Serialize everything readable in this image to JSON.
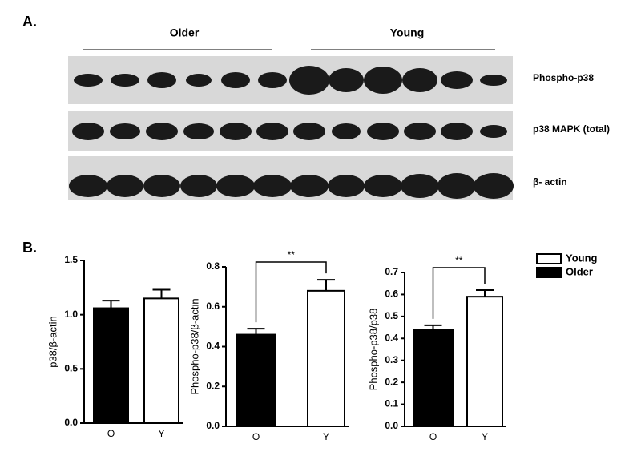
{
  "panel_labels": [
    "A.",
    "B."
  ],
  "blot": {
    "groups": [
      "Older",
      "Young"
    ],
    "rows": [
      "Phospho-p38",
      "p38 MAPK (total)",
      "β- actin"
    ]
  },
  "legend": [
    {
      "name": "Young",
      "color": "#ffffff"
    },
    {
      "name": "Older",
      "color": "#000000"
    }
  ],
  "chart_data": [
    {
      "type": "bar",
      "y_label": "p38/β-actin",
      "categories": [
        "O",
        "Y"
      ],
      "values": [
        1.06,
        1.15
      ],
      "errors": [
        0.07,
        0.08
      ],
      "colors": [
        "#000000",
        "#ffffff"
      ],
      "ylim": [
        0,
        1.5
      ],
      "yticks": [
        {
          "value": 0,
          "label": "0.0"
        },
        0.5,
        {
          "value": 1,
          "label": "1.0"
        },
        1.5
      ]
    },
    {
      "type": "bar",
      "y_label": "Phospho-p38/β-actin",
      "categories": [
        "O",
        "Y"
      ],
      "values": [
        0.46,
        0.68
      ],
      "errors": [
        0.03,
        0.055
      ],
      "colors": [
        "#000000",
        "#ffffff"
      ],
      "ylim": [
        0,
        0.8
      ],
      "yticks": [
        {
          "value": 0,
          "label": "0.0"
        },
        0.2,
        0.4,
        0.6,
        0.8
      ],
      "annotation": "**"
    },
    {
      "type": "bar",
      "y_label": "Phospho-p38/p38",
      "categories": [
        "O",
        "Y"
      ],
      "values": [
        0.44,
        0.59
      ],
      "errors": [
        0.02,
        0.03
      ],
      "colors": [
        "#000000",
        "#ffffff"
      ],
      "ylim": [
        0,
        0.7
      ],
      "yticks": [
        {
          "value": 0,
          "label": "0.0"
        },
        0.1,
        0.2,
        0.3,
        0.4,
        0.5,
        0.6,
        0.7
      ],
      "annotation": "**"
    }
  ]
}
